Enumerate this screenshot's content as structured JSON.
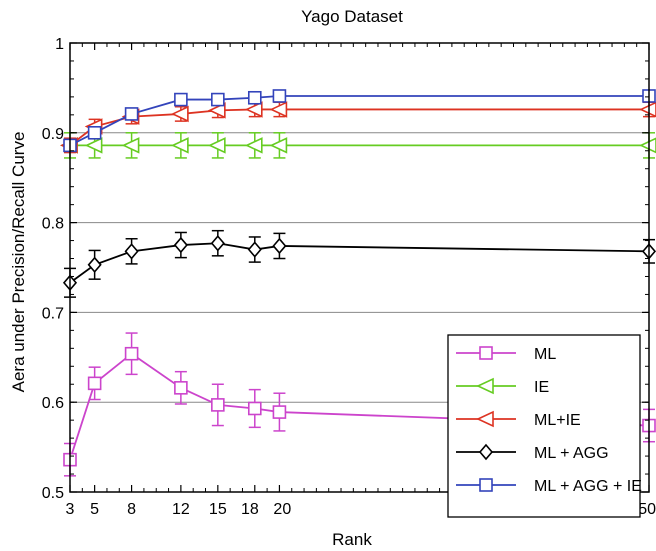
{
  "chart_data": {
    "type": "line",
    "title": "Yago Dataset",
    "xlabel": "Rank",
    "ylabel": "Aera under Precision/Recall Curve",
    "x_ticks": [
      3,
      5,
      8,
      12,
      15,
      18,
      20,
      50
    ],
    "x_tick_labels": [
      "3",
      "5",
      "8",
      "12",
      "15",
      "18",
      "20",
      "50"
    ],
    "y_ticks": [
      0.5,
      0.6,
      0.7,
      0.8,
      0.9,
      1
    ],
    "y_tick_labels": [
      "0.5",
      "0.6",
      "0.7",
      "0.8",
      "0.9",
      "1"
    ],
    "xlim": [
      3,
      50
    ],
    "ylim": [
      0.5,
      1.0
    ],
    "grid": "horizontal",
    "legend_position": "bottom-right",
    "series": [
      {
        "name": "ML",
        "color": "#cc44cc",
        "marker": "square",
        "x": [
          3,
          5,
          8,
          12,
          15,
          18,
          20,
          50
        ],
        "y": [
          0.536,
          0.621,
          0.654,
          0.616,
          0.597,
          0.593,
          0.589,
          0.574
        ],
        "err": [
          0.018,
          0.018,
          0.023,
          0.018,
          0.023,
          0.021,
          0.021,
          0.018
        ]
      },
      {
        "name": "IE",
        "color": "#66cc22",
        "marker": "triangle-left",
        "x": [
          3,
          5,
          8,
          12,
          15,
          18,
          20,
          50
        ],
        "y": [
          0.886,
          0.886,
          0.886,
          0.886,
          0.886,
          0.886,
          0.886,
          0.886
        ],
        "err": [
          0.014,
          0.014,
          0.014,
          0.014,
          0.014,
          0.014,
          0.014,
          0.014
        ]
      },
      {
        "name": "ML+IE",
        "color": "#dd3322",
        "marker": "triangle-left",
        "x": [
          3,
          5,
          8,
          12,
          15,
          18,
          20,
          50
        ],
        "y": [
          0.886,
          0.907,
          0.918,
          0.921,
          0.925,
          0.926,
          0.926,
          0.926
        ],
        "err": [
          0.008,
          0.008,
          0.008,
          0.008,
          0.008,
          0.008,
          0.008,
          0.008
        ]
      },
      {
        "name": "ML + AGG",
        "color": "#000000",
        "marker": "diamond",
        "x": [
          3,
          5,
          8,
          12,
          15,
          18,
          20,
          50
        ],
        "y": [
          0.733,
          0.753,
          0.768,
          0.775,
          0.777,
          0.77,
          0.774,
          0.768
        ],
        "err": [
          0.016,
          0.016,
          0.014,
          0.014,
          0.014,
          0.014,
          0.014,
          0.013
        ]
      },
      {
        "name": "ML + AGG + IE",
        "color": "#3344bb",
        "marker": "square",
        "x": [
          3,
          5,
          8,
          12,
          15,
          18,
          20,
          50
        ],
        "y": [
          0.886,
          0.9,
          0.921,
          0.937,
          0.937,
          0.939,
          0.941,
          0.941
        ],
        "err": [
          0.006,
          0.006,
          0.006,
          0.006,
          0.006,
          0.006,
          0.006,
          0.006
        ]
      }
    ]
  }
}
